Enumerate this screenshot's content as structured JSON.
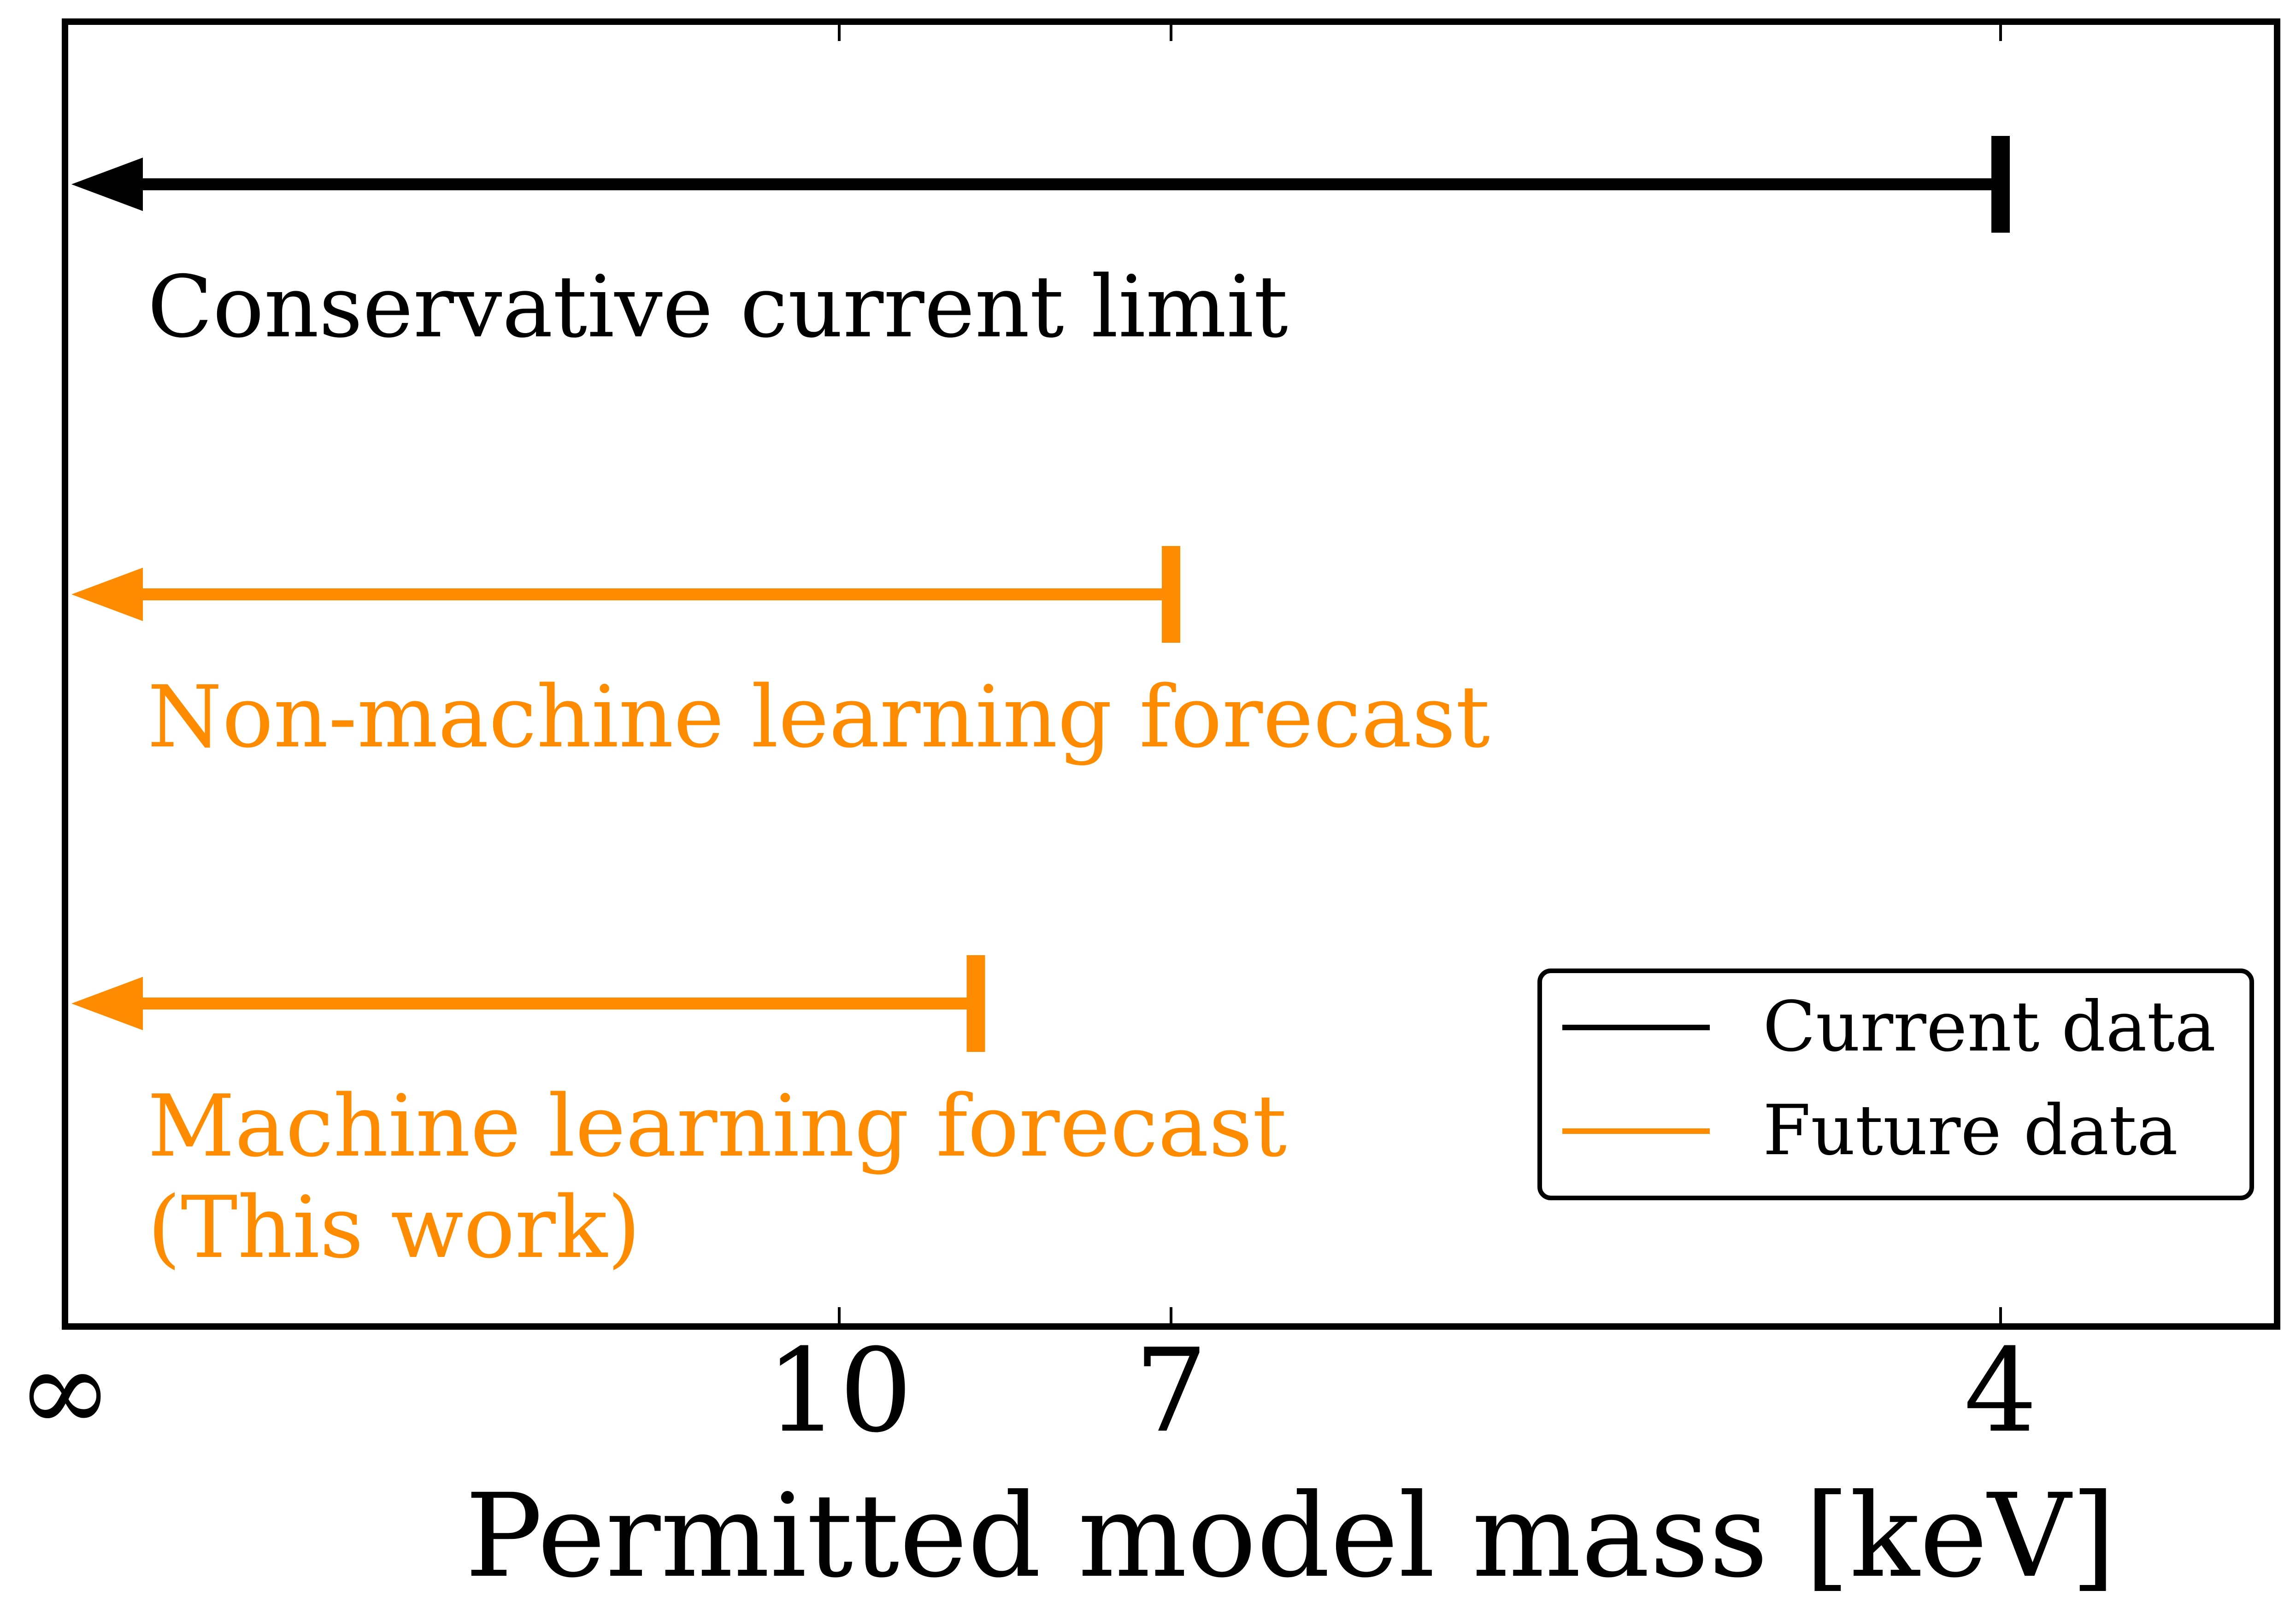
{
  "chart_data": {
    "type": "range",
    "title": "",
    "xlabel": "Permitted model mass [keV]",
    "ylabel": "",
    "x_scale": "reciprocal",
    "xlim": [
      "∞",
      3.5
    ],
    "xticks": [
      {
        "value": "∞",
        "label": "∞"
      },
      {
        "value": 10,
        "label": "10"
      },
      {
        "value": 7,
        "label": "7"
      },
      {
        "value": 4,
        "label": "4"
      }
    ],
    "grid": false,
    "series": [
      {
        "name": "Current data",
        "color": "#000000",
        "lower_mass_limit": 4,
        "upper": "∞",
        "label_lines": [
          "Conservative current limit"
        ]
      },
      {
        "name": "Future data",
        "color": "#ff8c00",
        "lower_mass_limit": 7,
        "upper": "∞",
        "label_lines": [
          "Non-machine learning forecast"
        ]
      },
      {
        "name": "Future data",
        "color": "#ff8c00",
        "lower_mass_limit": 8.5,
        "upper": "∞",
        "label_lines": [
          "Machine learning forecast",
          "(This work)"
        ]
      }
    ],
    "legend": {
      "position": "bottom-right",
      "entries": [
        {
          "label": "Current data",
          "color": "#000000"
        },
        {
          "label": "Future data",
          "color": "#ff8c00"
        }
      ]
    }
  }
}
